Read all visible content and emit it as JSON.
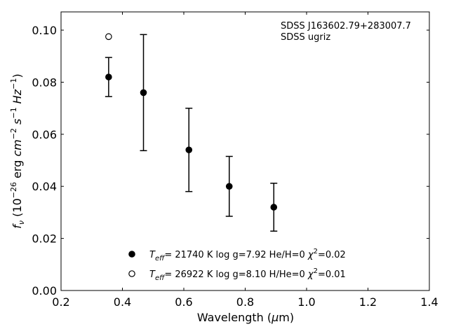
{
  "chart_data": {
    "type": "scatter",
    "annotation": {
      "object": "SDSS J163602.79+283007.7",
      "bands": "SDSS ugriz"
    },
    "xlabel": "Wavelength (μm)",
    "ylabel": "f_ν (10^-26 erg cm^-2 s^-1 Hz^-1)",
    "xlim": [
      0.2,
      1.4
    ],
    "ylim": [
      0.0,
      0.107
    ],
    "xticks": [
      "0.2",
      "0.4",
      "0.6",
      "0.8",
      "1.0",
      "1.2",
      "1.4"
    ],
    "yticks": [
      "0.00",
      "0.02",
      "0.04",
      "0.06",
      "0.08",
      "0.10"
    ],
    "observed": {
      "x": [
        0.3551,
        0.4686,
        0.6166,
        0.748,
        0.8932
      ],
      "y": [
        0.082,
        0.076,
        0.054,
        0.04,
        0.032
      ],
      "err": [
        0.0075,
        0.0223,
        0.016,
        0.0115,
        0.0092
      ]
    },
    "series": [
      {
        "marker": "filled",
        "color": "#000000",
        "label": {
          "teff": "21740 K",
          "logg": "log g=7.92",
          "comp": "He/H=0",
          "chi2": "0.02"
        },
        "x": [
          0.3551,
          0.4686,
          0.6166,
          0.748,
          0.8932
        ],
        "y": [
          0.082,
          0.076,
          0.054,
          0.04,
          0.032
        ]
      },
      {
        "marker": "open",
        "color": "#000000",
        "label": {
          "teff": "26922 K",
          "logg": "log g=8.10",
          "comp": "H/He=0",
          "chi2": "0.01"
        },
        "x": [
          0.3551
        ],
        "y": [
          0.0975
        ]
      }
    ]
  }
}
